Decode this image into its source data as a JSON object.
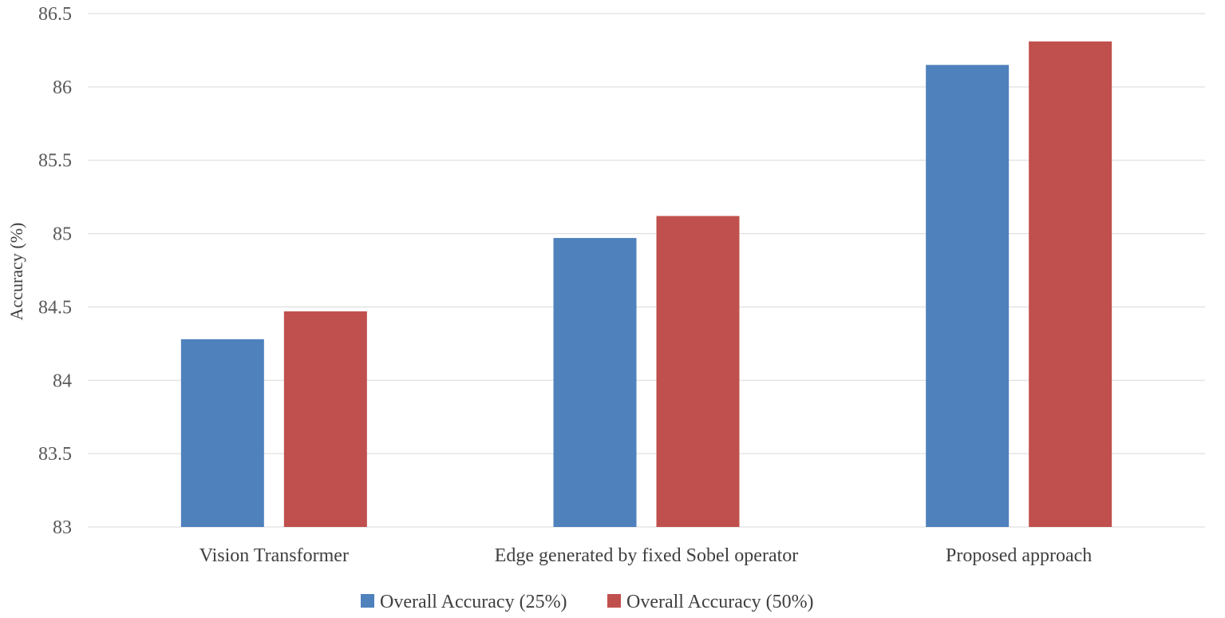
{
  "chart_data": {
    "type": "bar",
    "title": "",
    "xlabel": "",
    "ylabel": "Accuracy (%)",
    "ylim": [
      83,
      86.5
    ],
    "yticks": [
      "83",
      "83.5",
      "84",
      "84.5",
      "85",
      "85.5",
      "86",
      "86.5"
    ],
    "grid": true,
    "legend_position": "bottom",
    "categories": [
      "Vision Transformer",
      "Edge generated by fixed Sobel operator",
      "Proposed approach"
    ],
    "series": [
      {
        "name": "Overall Accuracy (25%)",
        "color": "#4f81bd",
        "values": [
          84.28,
          84.97,
          86.15
        ]
      },
      {
        "name": "Overall Accuracy (50%)",
        "color": "#c0504d",
        "values": [
          84.47,
          85.12,
          86.31
        ]
      }
    ]
  }
}
